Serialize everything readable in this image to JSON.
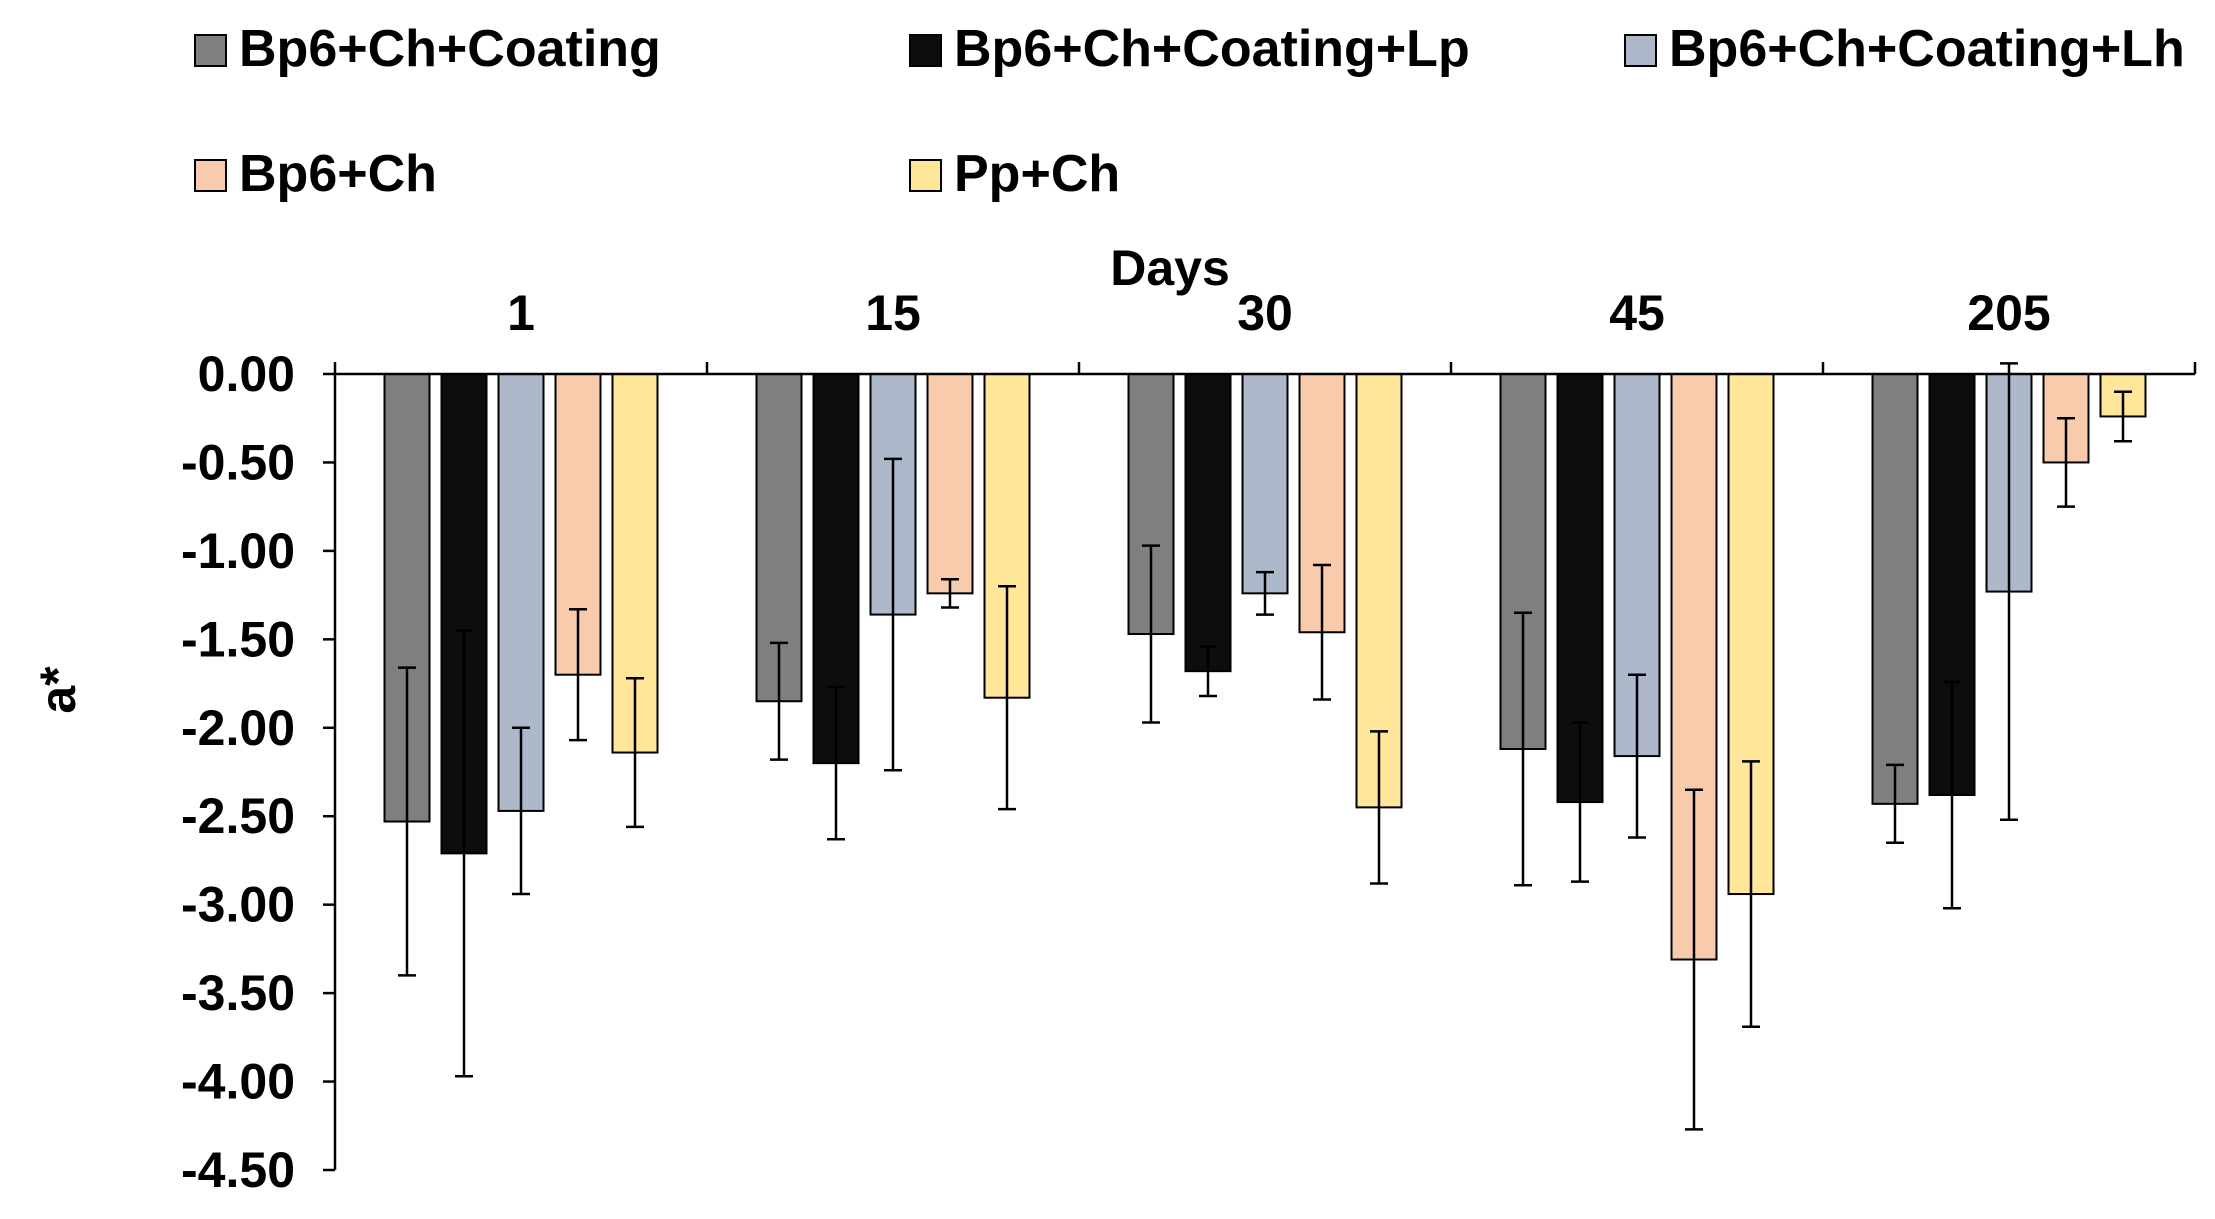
{
  "chart_data": {
    "type": "bar",
    "title": "",
    "xlabel": "Days",
    "ylabel": "a*",
    "xaxis_position": "top",
    "categories": [
      "1",
      "15",
      "30",
      "45",
      "205"
    ],
    "ylim": [
      -4.5,
      0
    ],
    "yticks": [
      "0.00",
      "-0.50",
      "-1.00",
      "-1.50",
      "-2.00",
      "-2.50",
      "-3.00",
      "-3.50",
      "-4.00",
      "-4.50"
    ],
    "ytick_values": [
      0,
      -0.5,
      -1,
      -1.5,
      -2,
      -2.5,
      -3,
      -3.5,
      -4,
      -4.5
    ],
    "grid": false,
    "legend_position": "top",
    "series": [
      {
        "name": "Bp6+Ch+Coating",
        "color": "#7f7f7f",
        "values": [
          -2.53,
          -1.85,
          -1.47,
          -2.12,
          -2.43
        ],
        "errors": [
          0.87,
          0.33,
          0.5,
          0.77,
          0.22
        ]
      },
      {
        "name": "Bp6+Ch+Coating+Lp",
        "color": "#0d0d0d",
        "values": [
          -2.71,
          -2.2,
          -1.68,
          -2.42,
          -2.38
        ],
        "errors": [
          1.26,
          0.43,
          0.14,
          0.45,
          0.64
        ]
      },
      {
        "name": "Bp6+Ch+Coating+Lh",
        "color": "#adb9ca",
        "values": [
          -2.47,
          -1.36,
          -1.24,
          -2.16,
          -1.23
        ],
        "errors": [
          0.47,
          0.88,
          0.12,
          0.46,
          1.29
        ]
      },
      {
        "name": "Bp6+Ch",
        "color": "#f8cbad",
        "values": [
          -1.7,
          -1.24,
          -1.46,
          -3.31,
          -0.5
        ],
        "errors": [
          0.37,
          0.08,
          0.38,
          0.96,
          0.25
        ]
      },
      {
        "name": "Pp+Ch",
        "color": "#ffe699",
        "values": [
          -2.14,
          -1.83,
          -2.45,
          -2.94,
          -0.24
        ],
        "errors": [
          0.42,
          0.63,
          0.43,
          0.75,
          0.14
        ]
      }
    ]
  }
}
